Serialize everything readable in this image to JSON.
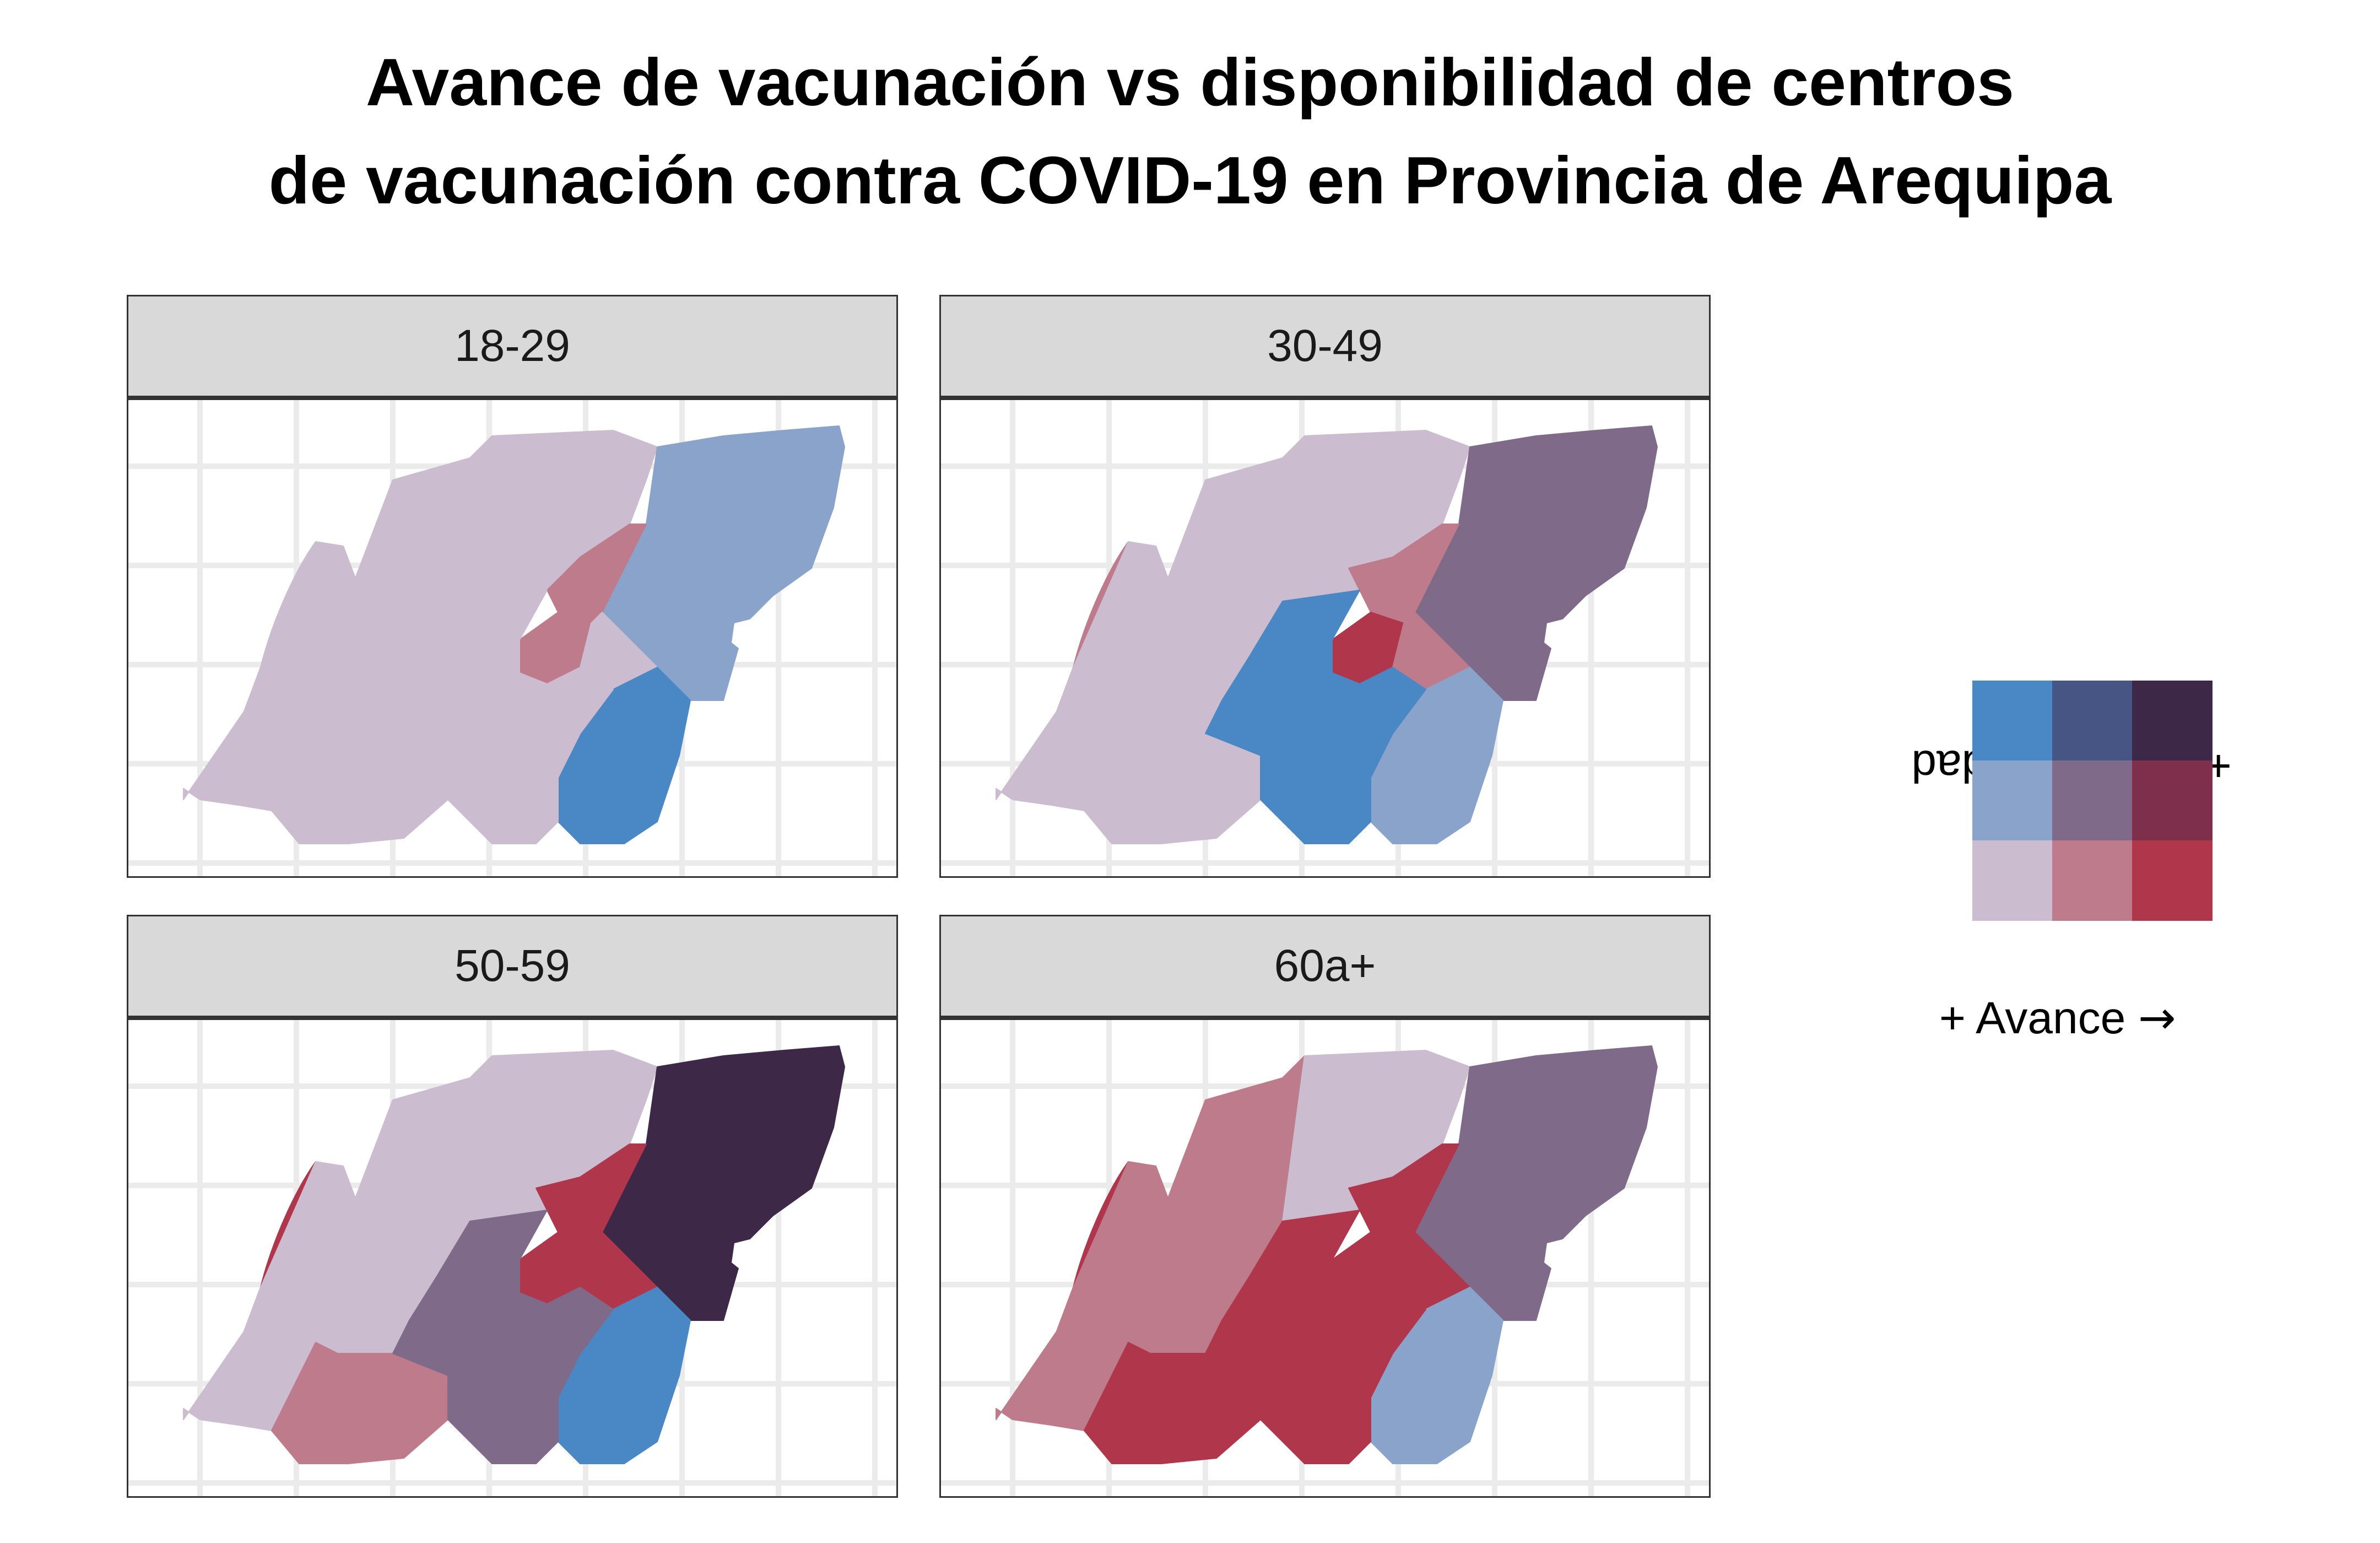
{
  "title_line1": "Avance de vacunación vs disponibilidad de centros",
  "title_line2": "de vacunación contra COVID-19 en Provincia de Arequipa",
  "colors": {
    "low_low": "#cbbcd0",
    "low_mid": "#8aa3ca",
    "low_high": "#4a88c5",
    "mid_low": "#be7b8b",
    "mid_mid": "#7f6a89",
    "mid_high": "#465583",
    "high_low": "#b0374b",
    "high_mid": "#7d2f4b",
    "high_high": "#3d2847"
  },
  "legend": {
    "x_label": "+ Avance",
    "y_label": "+ Disponibilidad",
    "arrow": "→",
    "grid": [
      [
        "low_high",
        "mid_high",
        "high_high"
      ],
      [
        "low_mid",
        "mid_mid",
        "high_mid"
      ],
      [
        "low_low",
        "mid_low",
        "high_low"
      ]
    ]
  },
  "panels": [
    {
      "label": "18-29",
      "regions": {
        "west": "low_low",
        "central": "low_low",
        "cerro": "low_low",
        "northeast": "low_mid",
        "inner": "mid_low",
        "core": "mid_low",
        "cone": "low_low",
        "southeast": "low_high",
        "southwest": "low_low",
        "south_mid": "low_low",
        "south_center": "low_low"
      }
    },
    {
      "label": "30-49",
      "regions": {
        "west": "low_low",
        "central": "low_low",
        "cerro": "mid_low",
        "northeast": "mid_mid",
        "inner": "mid_low",
        "core": "high_low",
        "cone": "mid_low",
        "southeast": "low_mid",
        "southwest": "mid_low",
        "south_mid": "low_low",
        "south_center": "low_high"
      }
    },
    {
      "label": "50-59",
      "regions": {
        "west": "low_low",
        "central": "low_low",
        "cerro": "high_low",
        "northeast": "high_high",
        "inner": "high_low",
        "core": "high_low",
        "cone": "high_low",
        "southeast": "low_high",
        "southwest": "high_low",
        "south_mid": "mid_low",
        "south_center": "mid_mid"
      }
    },
    {
      "label": "60a+",
      "regions": {
        "west": "mid_low",
        "central": "low_low",
        "cerro": "high_low",
        "northeast": "mid_mid",
        "inner": "high_low",
        "core": "high_low",
        "cone": "high_low",
        "southeast": "low_mid",
        "southwest": "high_low",
        "south_mid": "high_low",
        "south_center": "high_low"
      }
    }
  ]
}
